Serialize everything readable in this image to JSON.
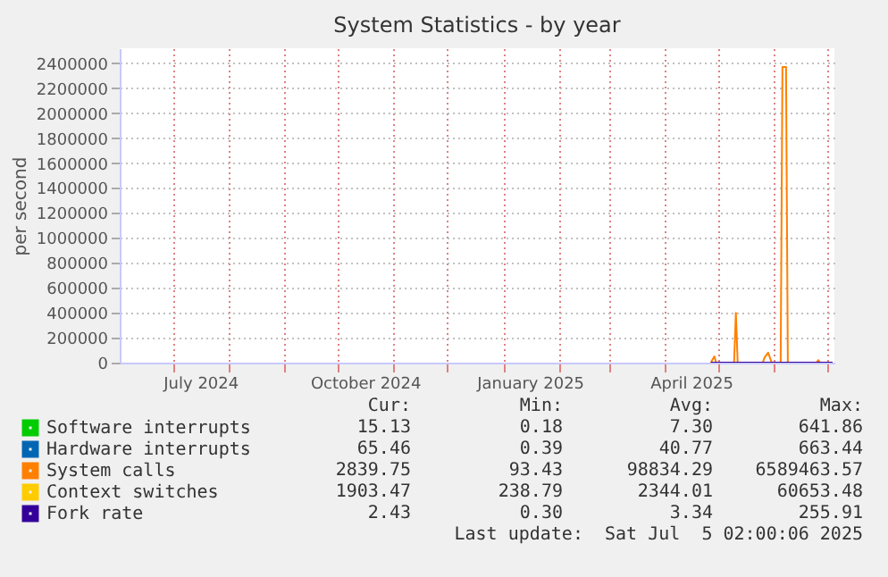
{
  "chart_data": {
    "type": "line",
    "title": "System Statistics - by year",
    "ylabel": "per second",
    "x": [
      "2025-04-27",
      "2025-04-29",
      "2025-04-30",
      "2025-05-10",
      "2025-05-11",
      "2025-05-12",
      "2025-05-26",
      "2025-05-27",
      "2025-05-29",
      "2025-05-30",
      "2025-05-31",
      "2025-06-05",
      "2025-06-06",
      "2025-06-08",
      "2025-06-09",
      "2025-06-25",
      "2025-06-26",
      "2025-06-27",
      "2025-07-04"
    ],
    "series": [
      {
        "name": "Software interrupts",
        "color": "#00cc00",
        "values": [
          null,
          null,
          null,
          null,
          null,
          null,
          null,
          null,
          null,
          null,
          null,
          null,
          null,
          null,
          null,
          null,
          null,
          null,
          null
        ]
      },
      {
        "name": "Hardware interrupts",
        "color": "#0066b3",
        "values": [
          null,
          null,
          null,
          null,
          null,
          null,
          null,
          null,
          null,
          null,
          null,
          null,
          null,
          null,
          null,
          null,
          null,
          null,
          null
        ]
      },
      {
        "name": "System calls",
        "color": "#ff8000",
        "values": [
          0,
          50000,
          0,
          0,
          400000,
          0,
          0,
          40000,
          80000,
          40000,
          0,
          0,
          2370000,
          2370000,
          0,
          0,
          20000,
          0,
          0
        ]
      },
      {
        "name": "Context switches",
        "color": "#ffcc00",
        "values": [
          null,
          null,
          null,
          null,
          null,
          null,
          null,
          null,
          null,
          null,
          null,
          null,
          null,
          null,
          null,
          null,
          null,
          null,
          null
        ]
      },
      {
        "name": "Fork rate",
        "color": "#330099",
        "values": [
          0,
          0,
          0,
          0,
          0,
          0,
          0,
          0,
          0,
          0,
          0,
          0,
          0,
          0,
          0,
          0,
          0,
          0,
          0
        ]
      }
    ],
    "xlim": [
      "2024-06-01",
      "2025-07-05"
    ],
    "xticks": [
      {
        "value": "2024-07-01",
        "label": null
      },
      {
        "value": "2024-07-16",
        "label": "July 2024"
      },
      {
        "value": "2024-08-01",
        "label": null
      },
      {
        "value": "2024-09-01",
        "label": null
      },
      {
        "value": "2024-10-01",
        "label": null
      },
      {
        "value": "2024-10-16",
        "label": "October 2024"
      },
      {
        "value": "2024-11-01",
        "label": null
      },
      {
        "value": "2024-12-01",
        "label": null
      },
      {
        "value": "2025-01-01",
        "label": null
      },
      {
        "value": "2025-01-16",
        "label": "January 2025"
      },
      {
        "value": "2025-02-01",
        "label": null
      },
      {
        "value": "2025-03-01",
        "label": null
      },
      {
        "value": "2025-04-01",
        "label": null
      },
      {
        "value": "2025-04-16",
        "label": "April 2025"
      },
      {
        "value": "2025-05-01",
        "label": null
      },
      {
        "value": "2025-06-01",
        "label": null
      },
      {
        "value": "2025-07-01",
        "label": null
      }
    ],
    "ylim": [
      0,
      2520000
    ],
    "yticks": [
      0,
      200000,
      400000,
      600000,
      800000,
      1000000,
      1200000,
      1400000,
      1600000,
      1800000,
      2000000,
      2200000,
      2400000
    ],
    "grid": true,
    "legend": "bottom left",
    "annotations": [
      "Cur:",
      "Min:",
      "Avg:",
      "Max:",
      "15.13",
      "0.18",
      "7.30",
      "641.86",
      "65.46",
      "0.39",
      "40.77",
      "663.44",
      "2839.75",
      "93.43",
      "98834.29",
      "6589463.57",
      "1903.47",
      "238.79",
      "2344.01",
      "60653.48",
      "2.43",
      "0.30",
      "3.34",
      "255.91",
      "Last update:  Sat Jul  5 02:00:06 2025"
    ]
  }
}
